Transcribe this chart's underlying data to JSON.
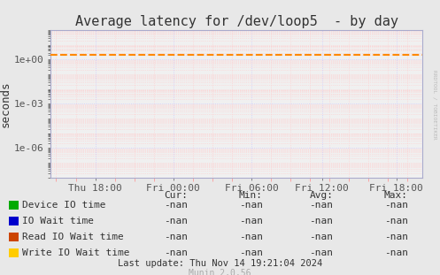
{
  "title": "Average latency for /dev/loop5  - by day",
  "ylabel": "seconds",
  "background_color": "#e8e8e8",
  "plot_bg_color": "#f0f0f0",
  "ylim": [
    1e-08,
    100.0
  ],
  "yticks": [
    1e-06,
    0.001,
    1.0
  ],
  "ytick_labels": [
    "1e-06",
    "1e-03",
    "1e+00"
  ],
  "xtick_labels": [
    "Thu 18:00",
    "Fri 00:00",
    "Fri 06:00",
    "Fri 12:00",
    "Fri 18:00"
  ],
  "xtick_positions": [
    0.12,
    0.33,
    0.54,
    0.73,
    0.93
  ],
  "dashed_line_y": 2.0,
  "dashed_line_color": "#ff8800",
  "grid_major_color": "#ccccff",
  "grid_minor_color": "#ffcccc",
  "axis_color": "#aaaacc",
  "legend_items": [
    {
      "label": "Device IO time",
      "color": "#00aa00"
    },
    {
      "label": "IO Wait time",
      "color": "#0000cc"
    },
    {
      "label": "Read IO Wait time",
      "color": "#cc4400"
    },
    {
      "label": "Write IO Wait time",
      "color": "#ffcc00"
    }
  ],
  "table_headers": [
    "Cur:",
    "Min:",
    "Avg:",
    "Max:"
  ],
  "table_values": [
    "-nan",
    "-nan",
    "-nan",
    "-nan"
  ],
  "footer_text": "Last update: Thu Nov 14 19:21:04 2024",
  "munin_text": "Munin 2.0.56",
  "watermark": "RRDTOOL / TOBIOETIKER",
  "title_fontsize": 11,
  "axis_fontsize": 8,
  "legend_fontsize": 8,
  "table_fontsize": 8,
  "footer_fontsize": 7.5,
  "munin_fontsize": 7
}
